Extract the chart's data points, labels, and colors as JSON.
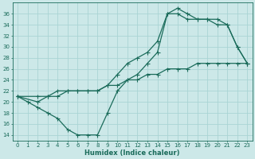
{
  "line1_x": [
    0,
    1,
    2,
    3,
    4,
    5,
    6,
    7,
    8,
    9,
    10,
    11,
    12,
    13,
    14,
    15,
    16,
    17,
    18,
    19,
    20,
    21,
    22,
    23
  ],
  "line1_y": [
    21,
    20,
    19,
    18,
    17,
    15,
    14,
    14,
    14,
    18,
    22,
    24,
    25,
    27,
    29,
    36,
    37,
    36,
    35,
    35,
    34,
    34,
    30,
    27
  ],
  "line2_x": [
    0,
    2,
    3,
    4,
    5,
    6,
    7,
    8,
    9,
    10,
    11,
    12,
    13,
    14,
    15,
    16,
    17,
    18,
    19,
    20,
    21,
    22,
    23
  ],
  "line2_y": [
    21,
    21,
    21,
    22,
    22,
    22,
    22,
    22,
    23,
    25,
    27,
    28,
    29,
    31,
    36,
    36,
    35,
    35,
    35,
    35,
    34,
    30,
    27
  ],
  "line3_x": [
    0,
    2,
    3,
    4,
    5,
    6,
    7,
    8,
    9,
    10,
    11,
    12,
    13,
    14,
    15,
    16,
    17,
    18,
    19,
    20,
    21,
    22,
    23
  ],
  "line3_y": [
    21,
    20,
    21,
    21,
    22,
    22,
    22,
    22,
    23,
    23,
    24,
    24,
    25,
    25,
    26,
    26,
    26,
    27,
    27,
    27,
    27,
    27,
    27
  ],
  "line_color": "#1a6b5a",
  "bg_color": "#cce8e8",
  "grid_color": "#aad4d4",
  "xlabel": "Humidex (Indice chaleur)",
  "xlim": [
    -0.5,
    23.5
  ],
  "ylim": [
    13,
    38
  ],
  "yticks": [
    14,
    16,
    18,
    20,
    22,
    24,
    26,
    28,
    30,
    32,
    34,
    36
  ],
  "xticks": [
    0,
    1,
    2,
    3,
    4,
    5,
    6,
    7,
    8,
    9,
    10,
    11,
    12,
    13,
    14,
    15,
    16,
    17,
    18,
    19,
    20,
    21,
    22,
    23
  ],
  "marker_size": 2.0,
  "line_width": 0.9
}
